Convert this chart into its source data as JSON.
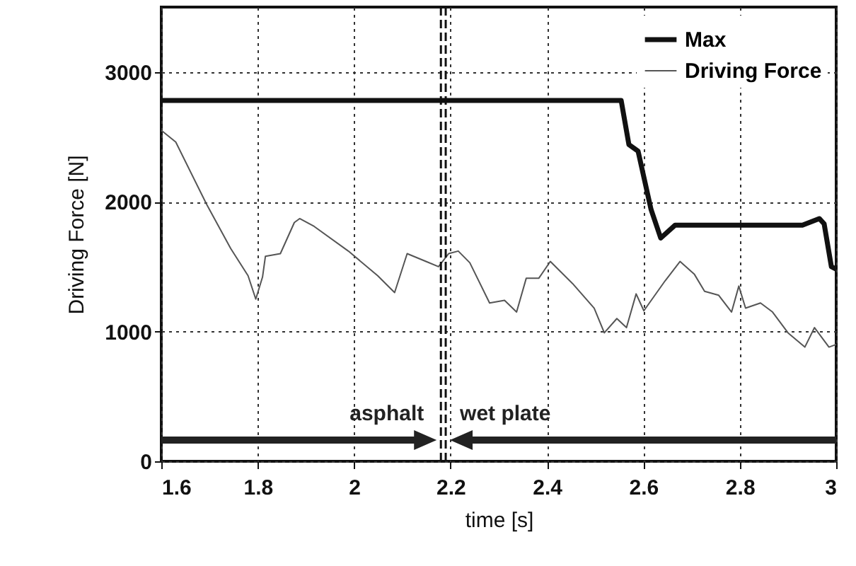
{
  "chart_data": {
    "type": "line",
    "xlabel": "time [s]",
    "ylabel": "Driving Force [N]",
    "xlim": [
      1.6,
      3
    ],
    "xticks": [
      1.6,
      1.8,
      {
        "value": 2,
        "label": "2"
      },
      2.2,
      2.4,
      2.6,
      2.8,
      {
        "value": 3,
        "label": "3"
      }
    ],
    "ylim": [
      0,
      3500
    ],
    "yticks": [
      0,
      {
        "value": 1000,
        "label": "1000"
      },
      {
        "value": 2000,
        "label": "2000"
      },
      {
        "value": 3000,
        "label": "3000"
      }
    ],
    "grid": true,
    "legend": "top right",
    "marker": "none",
    "line_style": "solid",
    "series": [
      {
        "name": "Max",
        "color": "#111111",
        "x": [
          1.6,
          2.554,
          2.57,
          2.589,
          2.616,
          2.636,
          2.666,
          2.93,
          2.965,
          2.975,
          2.99,
          3
        ],
        "values": [
          2780,
          2780,
          2440,
          2390,
          1940,
          1720,
          1820,
          1820,
          1870,
          1830,
          1500,
          1480
        ]
      },
      {
        "name": "Driving Force",
        "color": "#555555",
        "x": [
          1.6,
          1.63,
          1.694,
          1.744,
          1.78,
          1.796,
          1.81,
          1.816,
          1.847,
          1.876,
          1.887,
          1.917,
          1.988,
          2.049,
          2.084,
          2.11,
          2.149,
          2.175,
          2.196,
          2.216,
          2.24,
          2.281,
          2.312,
          2.337,
          2.357,
          2.383,
          2.407,
          2.453,
          2.498,
          2.519,
          2.545,
          2.565,
          2.585,
          2.601,
          2.645,
          2.676,
          2.706,
          2.727,
          2.756,
          2.783,
          2.798,
          2.812,
          2.843,
          2.868,
          2.9,
          2.935,
          2.955,
          2.985,
          3
        ],
        "values": [
          2550,
          2460,
          1980,
          1640,
          1430,
          1250,
          1420,
          1580,
          1600,
          1840,
          1870,
          1810,
          1620,
          1430,
          1300,
          1600,
          1540,
          1500,
          1600,
          1620,
          1530,
          1220,
          1240,
          1150,
          1410,
          1410,
          1540,
          1370,
          1180,
          990,
          1100,
          1030,
          1290,
          1160,
          1390,
          1540,
          1440,
          1310,
          1280,
          1150,
          1350,
          1180,
          1220,
          1150,
          990,
          880,
          1030,
          880,
          900
        ]
      }
    ],
    "ref_lines": [
      {
        "axis": "x",
        "value": 2.18,
        "color": "#111111",
        "line_style": "dashed"
      },
      {
        "axis": "x",
        "value": 2.19,
        "color": "#111111",
        "line_style": "dashed"
      }
    ],
    "annotations": [
      "asphalt",
      "wet plate"
    ]
  }
}
